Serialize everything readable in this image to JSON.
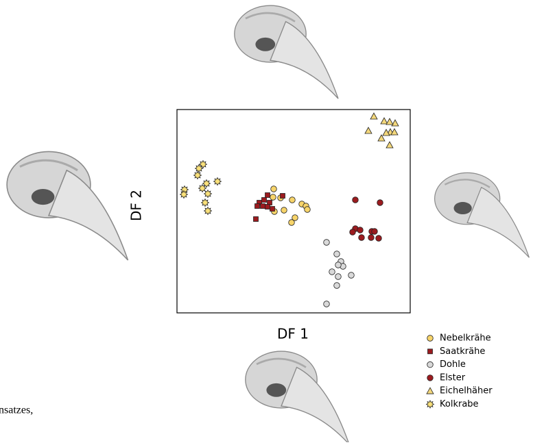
{
  "chart_data": {
    "type": "scatter",
    "x_label": "DF 1",
    "y_label": "DF 2",
    "annotations": [
      "nsatzes,"
    ],
    "xlim": [
      0,
      340
    ],
    "ylim": [
      0,
      297
    ],
    "series": [
      {
        "name": "Nebelkrähe",
        "color": "#f7d46a",
        "marker": "circle",
        "x": [
          141,
          140,
          151,
          168,
          142,
          156,
          182,
          188,
          190,
          172,
          167
        ],
        "values": [
          181,
          169,
          168,
          165,
          148,
          150,
          159,
          156,
          151,
          139,
          132
        ]
      },
      {
        "name": "Saatkrähe",
        "color": "#9b1b1f",
        "marker": "square",
        "x": [
          132,
          127,
          120,
          135,
          117,
          125,
          132,
          139,
          154,
          115
        ],
        "values": [
          172,
          165,
          161,
          161,
          156,
          156,
          155,
          152,
          171,
          137
        ]
      },
      {
        "name": "Dohle",
        "color": "#d9d9d9",
        "marker": "circle",
        "x": [
          218,
          233,
          239,
          242,
          235,
          226,
          254,
          235,
          233,
          218
        ],
        "values": [
          103,
          86,
          75,
          68,
          70,
          60,
          55,
          53,
          40,
          13
        ]
      },
      {
        "name": "Elster",
        "color": "#9b1b1f",
        "marker": "circle",
        "x": [
          260,
          296,
          260,
          267,
          256,
          269,
          284,
          288,
          283,
          294
        ],
        "values": [
          165,
          161,
          123,
          121,
          118,
          110,
          119,
          119,
          110,
          109
        ]
      },
      {
        "name": "Eichelhäher",
        "color": "#f3d77b",
        "marker": "triangle",
        "x": [
          287,
          302,
          318,
          310,
          279,
          311,
          305,
          317,
          298,
          310
        ],
        "values": [
          287,
          280,
          277,
          279,
          266,
          264,
          263,
          264,
          255,
          245
        ]
      },
      {
        "name": "Kolkrabe",
        "color": "#f9e07a",
        "marker": "star",
        "x": [
          38,
          32,
          30,
          43,
          59,
          11,
          10,
          37,
          45,
          41,
          45
        ],
        "values": [
          217,
          211,
          201,
          189,
          192,
          180,
          173,
          182,
          174,
          161,
          149
        ]
      }
    ]
  }
}
